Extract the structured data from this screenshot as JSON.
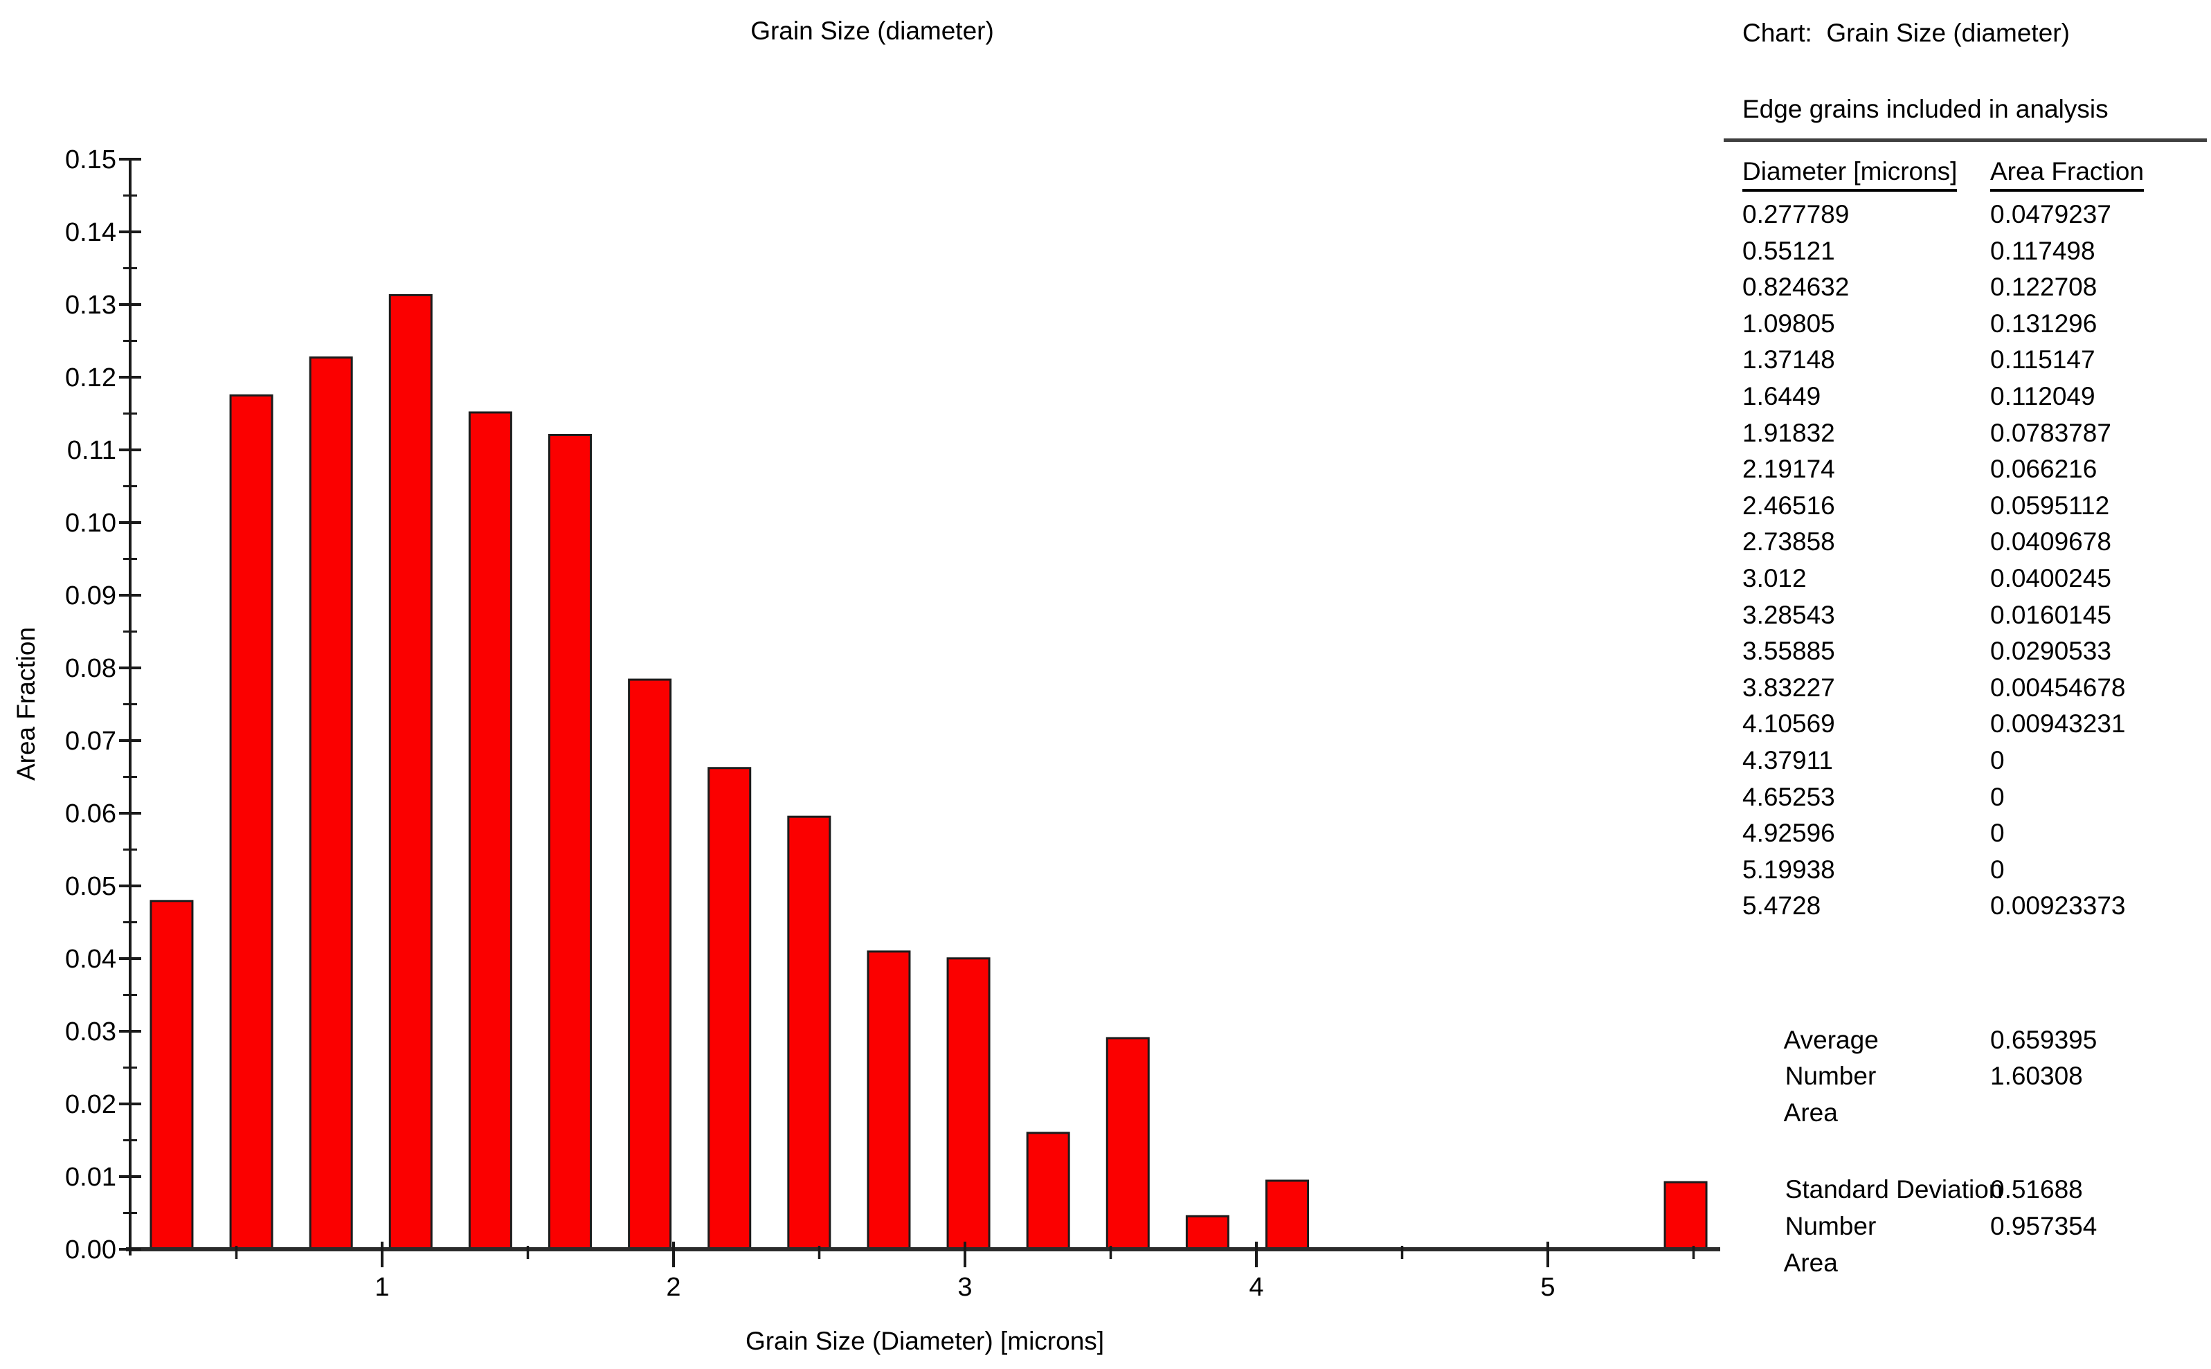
{
  "chart_data": {
    "type": "bar",
    "title": "Grain Size (diameter)",
    "xlabel": "Grain Size (Diameter) [microns]",
    "ylabel": "Area Fraction",
    "x": [
      0.277789,
      0.55121,
      0.824632,
      1.09805,
      1.37148,
      1.6449,
      1.91832,
      2.19174,
      2.46516,
      2.73858,
      3.012,
      3.28543,
      3.55885,
      3.83227,
      4.10569,
      4.37911,
      4.65253,
      4.92596,
      5.19938,
      5.4728
    ],
    "values": [
      0.0479237,
      0.117498,
      0.122708,
      0.131296,
      0.115147,
      0.112049,
      0.0783787,
      0.066216,
      0.0595112,
      0.0409678,
      0.0400245,
      0.0160145,
      0.0290533,
      0.00454678,
      0.00943231,
      0,
      0,
      0,
      0,
      0.00923373
    ],
    "ylim": [
      0,
      0.15
    ],
    "y_major_step": 0.01,
    "y_minor_step": 0.005,
    "y_label_decimals": 2,
    "x_major_ticks": [
      1,
      2,
      3,
      4,
      5
    ],
    "x_minor_ticks": [
      0.5,
      1.5,
      2.5,
      3.5,
      4.5,
      5.5
    ],
    "x_axis_range": [
      0.135,
      5.59
    ],
    "grid": false,
    "legend": false,
    "bar_color": "#fb0000",
    "bar_border_color": "#1c1c1c",
    "axis_color": "#2b2b2b",
    "tick_color": "#1a1a1a",
    "text_color": "#000000"
  },
  "panel": {
    "chart_label": "Chart:  Grain Size (diameter)",
    "subtitle": "Edge grains included in analysis",
    "columns": [
      "Diameter [microns]",
      "Area Fraction"
    ],
    "rows": [
      [
        "0.277789",
        "0.0479237"
      ],
      [
        "0.55121",
        "0.117498"
      ],
      [
        "0.824632",
        "0.122708"
      ],
      [
        "1.09805",
        "0.131296"
      ],
      [
        "1.37148",
        "0.115147"
      ],
      [
        "1.6449",
        "0.112049"
      ],
      [
        "1.91832",
        "0.0783787"
      ],
      [
        "2.19174",
        "0.066216"
      ],
      [
        "2.46516",
        "0.0595112"
      ],
      [
        "2.73858",
        "0.0409678"
      ],
      [
        "3.012",
        "0.0400245"
      ],
      [
        "3.28543",
        "0.0160145"
      ],
      [
        "3.55885",
        "0.0290533"
      ],
      [
        "3.83227",
        "0.00454678"
      ],
      [
        "4.10569",
        "0.00943231"
      ],
      [
        "4.37911",
        "0"
      ],
      [
        "4.65253",
        "0"
      ],
      [
        "4.92596",
        "0"
      ],
      [
        "5.19938",
        "0"
      ],
      [
        "5.4728",
        "0.00923373"
      ]
    ],
    "average": {
      "label": "Average",
      "number_label": "Number",
      "number_value": "0.659395",
      "area_label": "Area",
      "area_value": "1.60308"
    },
    "std_dev": {
      "label": "Standard Deviation",
      "number_label": "Number",
      "number_value": "0.51688",
      "area_label": "Area",
      "area_value": "0.957354"
    }
  }
}
